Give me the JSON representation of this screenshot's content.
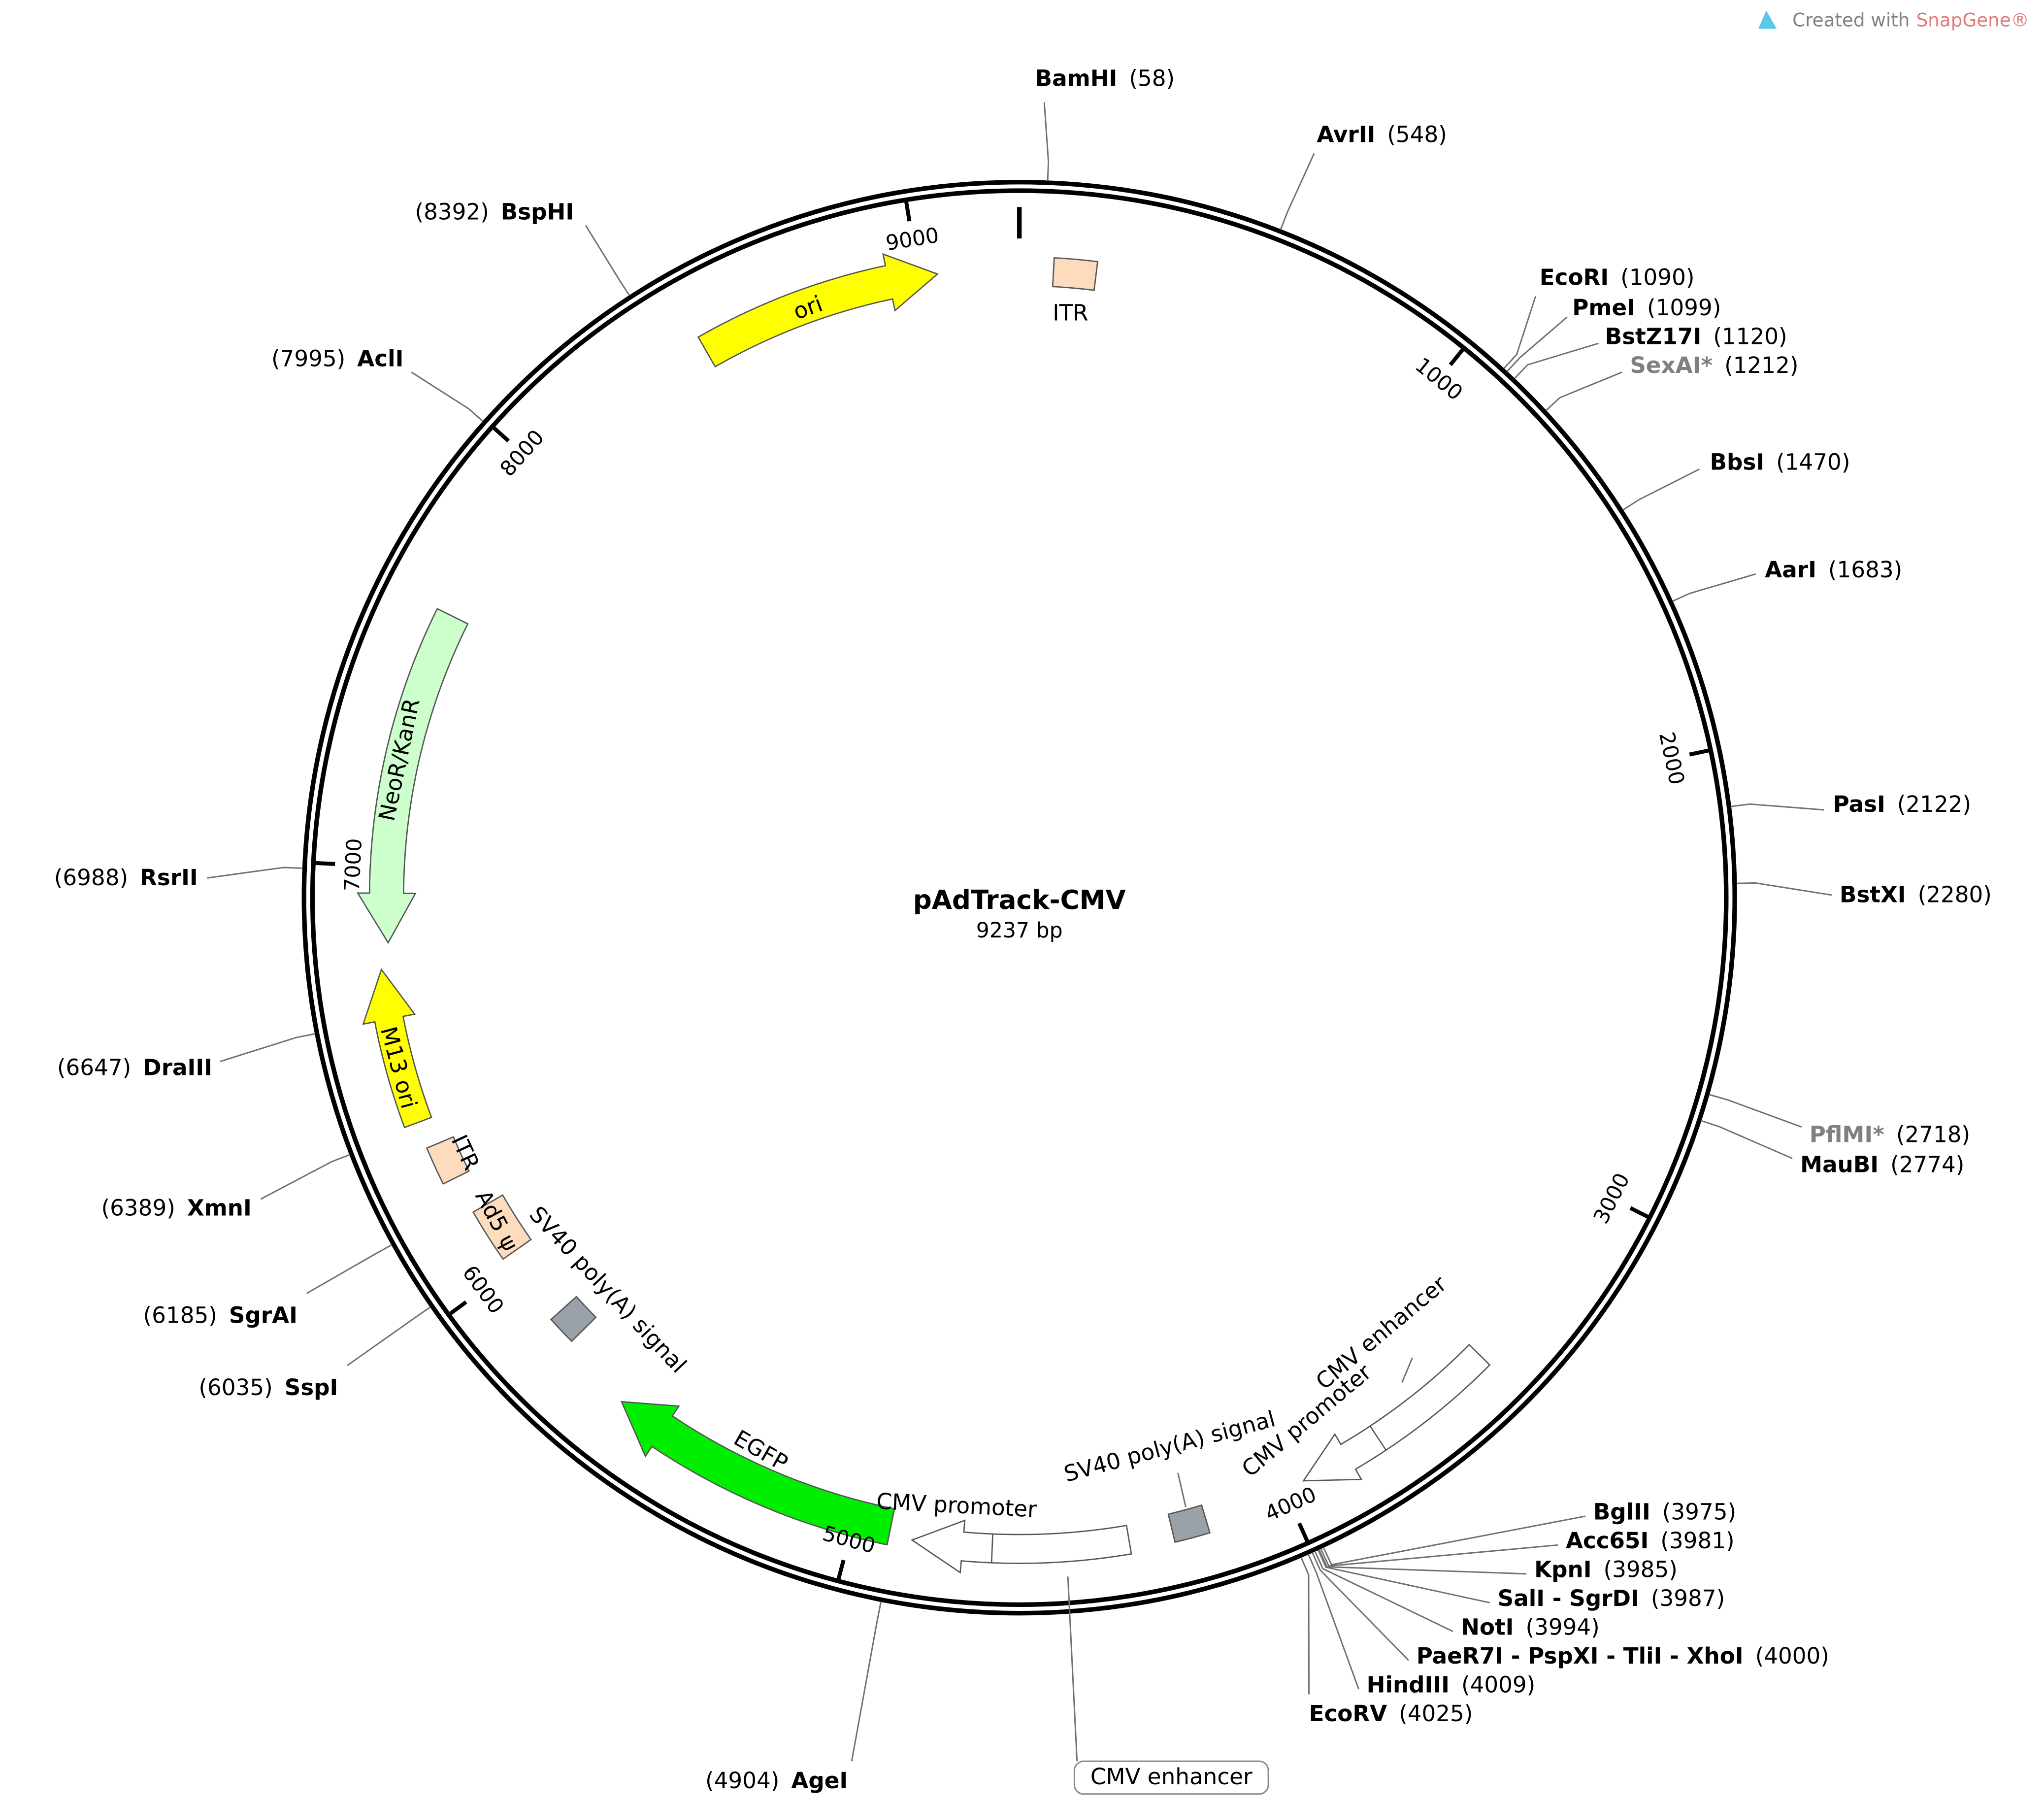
{
  "branding": {
    "prefix": "Created with",
    "product": "SnapGene®"
  },
  "plasmid": {
    "name": "pAdTrack-CMV",
    "size": "9237 bp"
  },
  "ruler": [
    1000,
    2000,
    3000,
    4000,
    5000,
    6000,
    7000,
    8000,
    9000
  ],
  "sites": [
    {
      "name": "BamHI",
      "position": "(58)"
    },
    {
      "name": "AvrII",
      "position": "(548)"
    },
    {
      "name": "EcoRI",
      "position": "(1090)"
    },
    {
      "name": "PmeI",
      "position": "(1099)"
    },
    {
      "name": "BstZ17I",
      "position": "(1120)"
    },
    {
      "name": "SexAI*",
      "position": "(1212)"
    },
    {
      "name": "BbsI",
      "position": "(1470)"
    },
    {
      "name": "AarI",
      "position": "(1683)"
    },
    {
      "name": "PasI",
      "position": "(2122)"
    },
    {
      "name": "BstXI",
      "position": "(2280)"
    },
    {
      "name": "PflMI*",
      "position": "(2718)"
    },
    {
      "name": "MauBI",
      "position": "(2774)"
    },
    {
      "name": "BglII",
      "position": "(3975)"
    },
    {
      "name": "Acc65I",
      "position": "(3981)"
    },
    {
      "name": "KpnI",
      "position": "(3985)"
    },
    {
      "name": "SalI - SgrDI",
      "position": "(3987)"
    },
    {
      "name": "NotI",
      "position": "(3994)"
    },
    {
      "name": "PaeR7I - PspXI - TliI - XhoI",
      "position": "(4000)"
    },
    {
      "name": "HindIII",
      "position": "(4009)"
    },
    {
      "name": "EcoRV",
      "position": "(4025)"
    },
    {
      "name": "AgeI",
      "position": "(4904)"
    },
    {
      "name": "SspI",
      "position": "(6035)"
    },
    {
      "name": "SgrAI",
      "position": "(6185)"
    },
    {
      "name": "XmnI",
      "position": "(6389)"
    },
    {
      "name": "DraIII",
      "position": "(6647)"
    },
    {
      "name": "RsrII",
      "position": "(6988)"
    },
    {
      "name": "AclI",
      "position": "(7995)"
    },
    {
      "name": "BspHI",
      "position": "(8392)"
    }
  ],
  "features": [
    "ITR",
    "ori",
    "NeoR/KanR",
    "M13 ori",
    "ITR",
    "Ad5 ψ",
    "SV40 poly(A) signal",
    "EGFP",
    "CMV promoter",
    "CMV enhancer",
    "SV40 poly(A) signal",
    "CMV promoter",
    "CMV enhancer"
  ]
}
